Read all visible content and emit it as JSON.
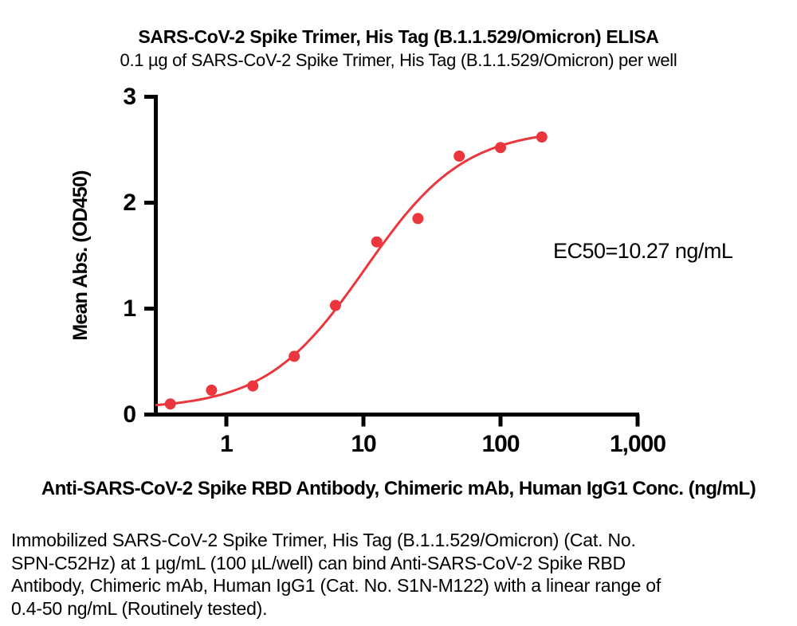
{
  "chart_data": {
    "type": "scatter",
    "title": "SARS-CoV-2 Spike Trimer, His Tag (B.1.1.529/Omicron) ELISA",
    "subtitle": "0.1 µg of SARS-CoV-2 Spike Trimer, His Tag (B.1.1.529/Omicron) per well",
    "xlabel": "Anti-SARS-CoV-2 Spike RBD Antibody, Chimeric mAb, Human IgG1 Conc. (ng/mL)",
    "ylabel": "Mean Abs. (OD450)",
    "x_scale": "log",
    "xlim": [
      0.3,
      1000
    ],
    "ylim": [
      0,
      3
    ],
    "grid": false,
    "legend": "none",
    "x": [
      0.39,
      0.78,
      1.56,
      3.13,
      6.25,
      12.5,
      25,
      50,
      100,
      200
    ],
    "y": [
      0.1,
      0.23,
      0.27,
      0.55,
      1.03,
      1.63,
      1.85,
      2.44,
      2.52,
      2.62
    ],
    "x_ticks": [
      {
        "value": 1,
        "label": "1"
      },
      {
        "value": 10,
        "label": "10"
      },
      {
        "value": 100,
        "label": "100"
      },
      {
        "value": 1000,
        "label": "1,000"
      }
    ],
    "y_ticks": [
      {
        "value": 0,
        "label": "0"
      },
      {
        "value": 1,
        "label": "1"
      },
      {
        "value": 2,
        "label": "2"
      },
      {
        "value": 3,
        "label": "3"
      }
    ],
    "fit": {
      "model": "4PL",
      "bottom": 0.05,
      "top": 2.7,
      "ec50": 10.27,
      "hill": 1.2,
      "draw_from": 0.304,
      "draw_to": 200
    },
    "annotation": "EC50=10.27 ng/mL",
    "curve_color": "#EA363C",
    "point_color": "#EA363C",
    "axis_color": "#000000"
  },
  "caption": {
    "lines": [
      "Immobilized SARS-CoV-2 Spike Trimer, His Tag (B.1.1.529/Omicron) (Cat. No.",
      "SPN-C52Hz) at 1 µg/mL (100 µL/well) can bind Anti-SARS-CoV-2 Spike RBD",
      "Antibody, Chimeric mAb, Human IgG1 (Cat. No. S1N-M122) with a linear range of",
      "0.4-50 ng/mL (Routinely tested)."
    ]
  }
}
